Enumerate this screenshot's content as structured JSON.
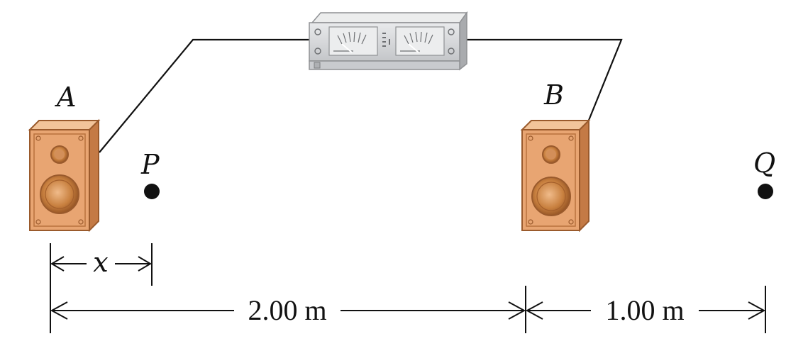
{
  "labels": {
    "speaker_a": "A",
    "speaker_b": "B",
    "point_p": "P",
    "point_q": "Q",
    "variable_x": "x"
  },
  "dimensions": {
    "a_to_b": "2.00 m",
    "b_to_q": "1.00 m"
  },
  "colors": {
    "speaker_body": "#e8a572",
    "speaker_side": "#c47a45",
    "speaker_outline": "#9a5a2c",
    "amplifier_body": "#d7d8da",
    "line": "#111111"
  }
}
